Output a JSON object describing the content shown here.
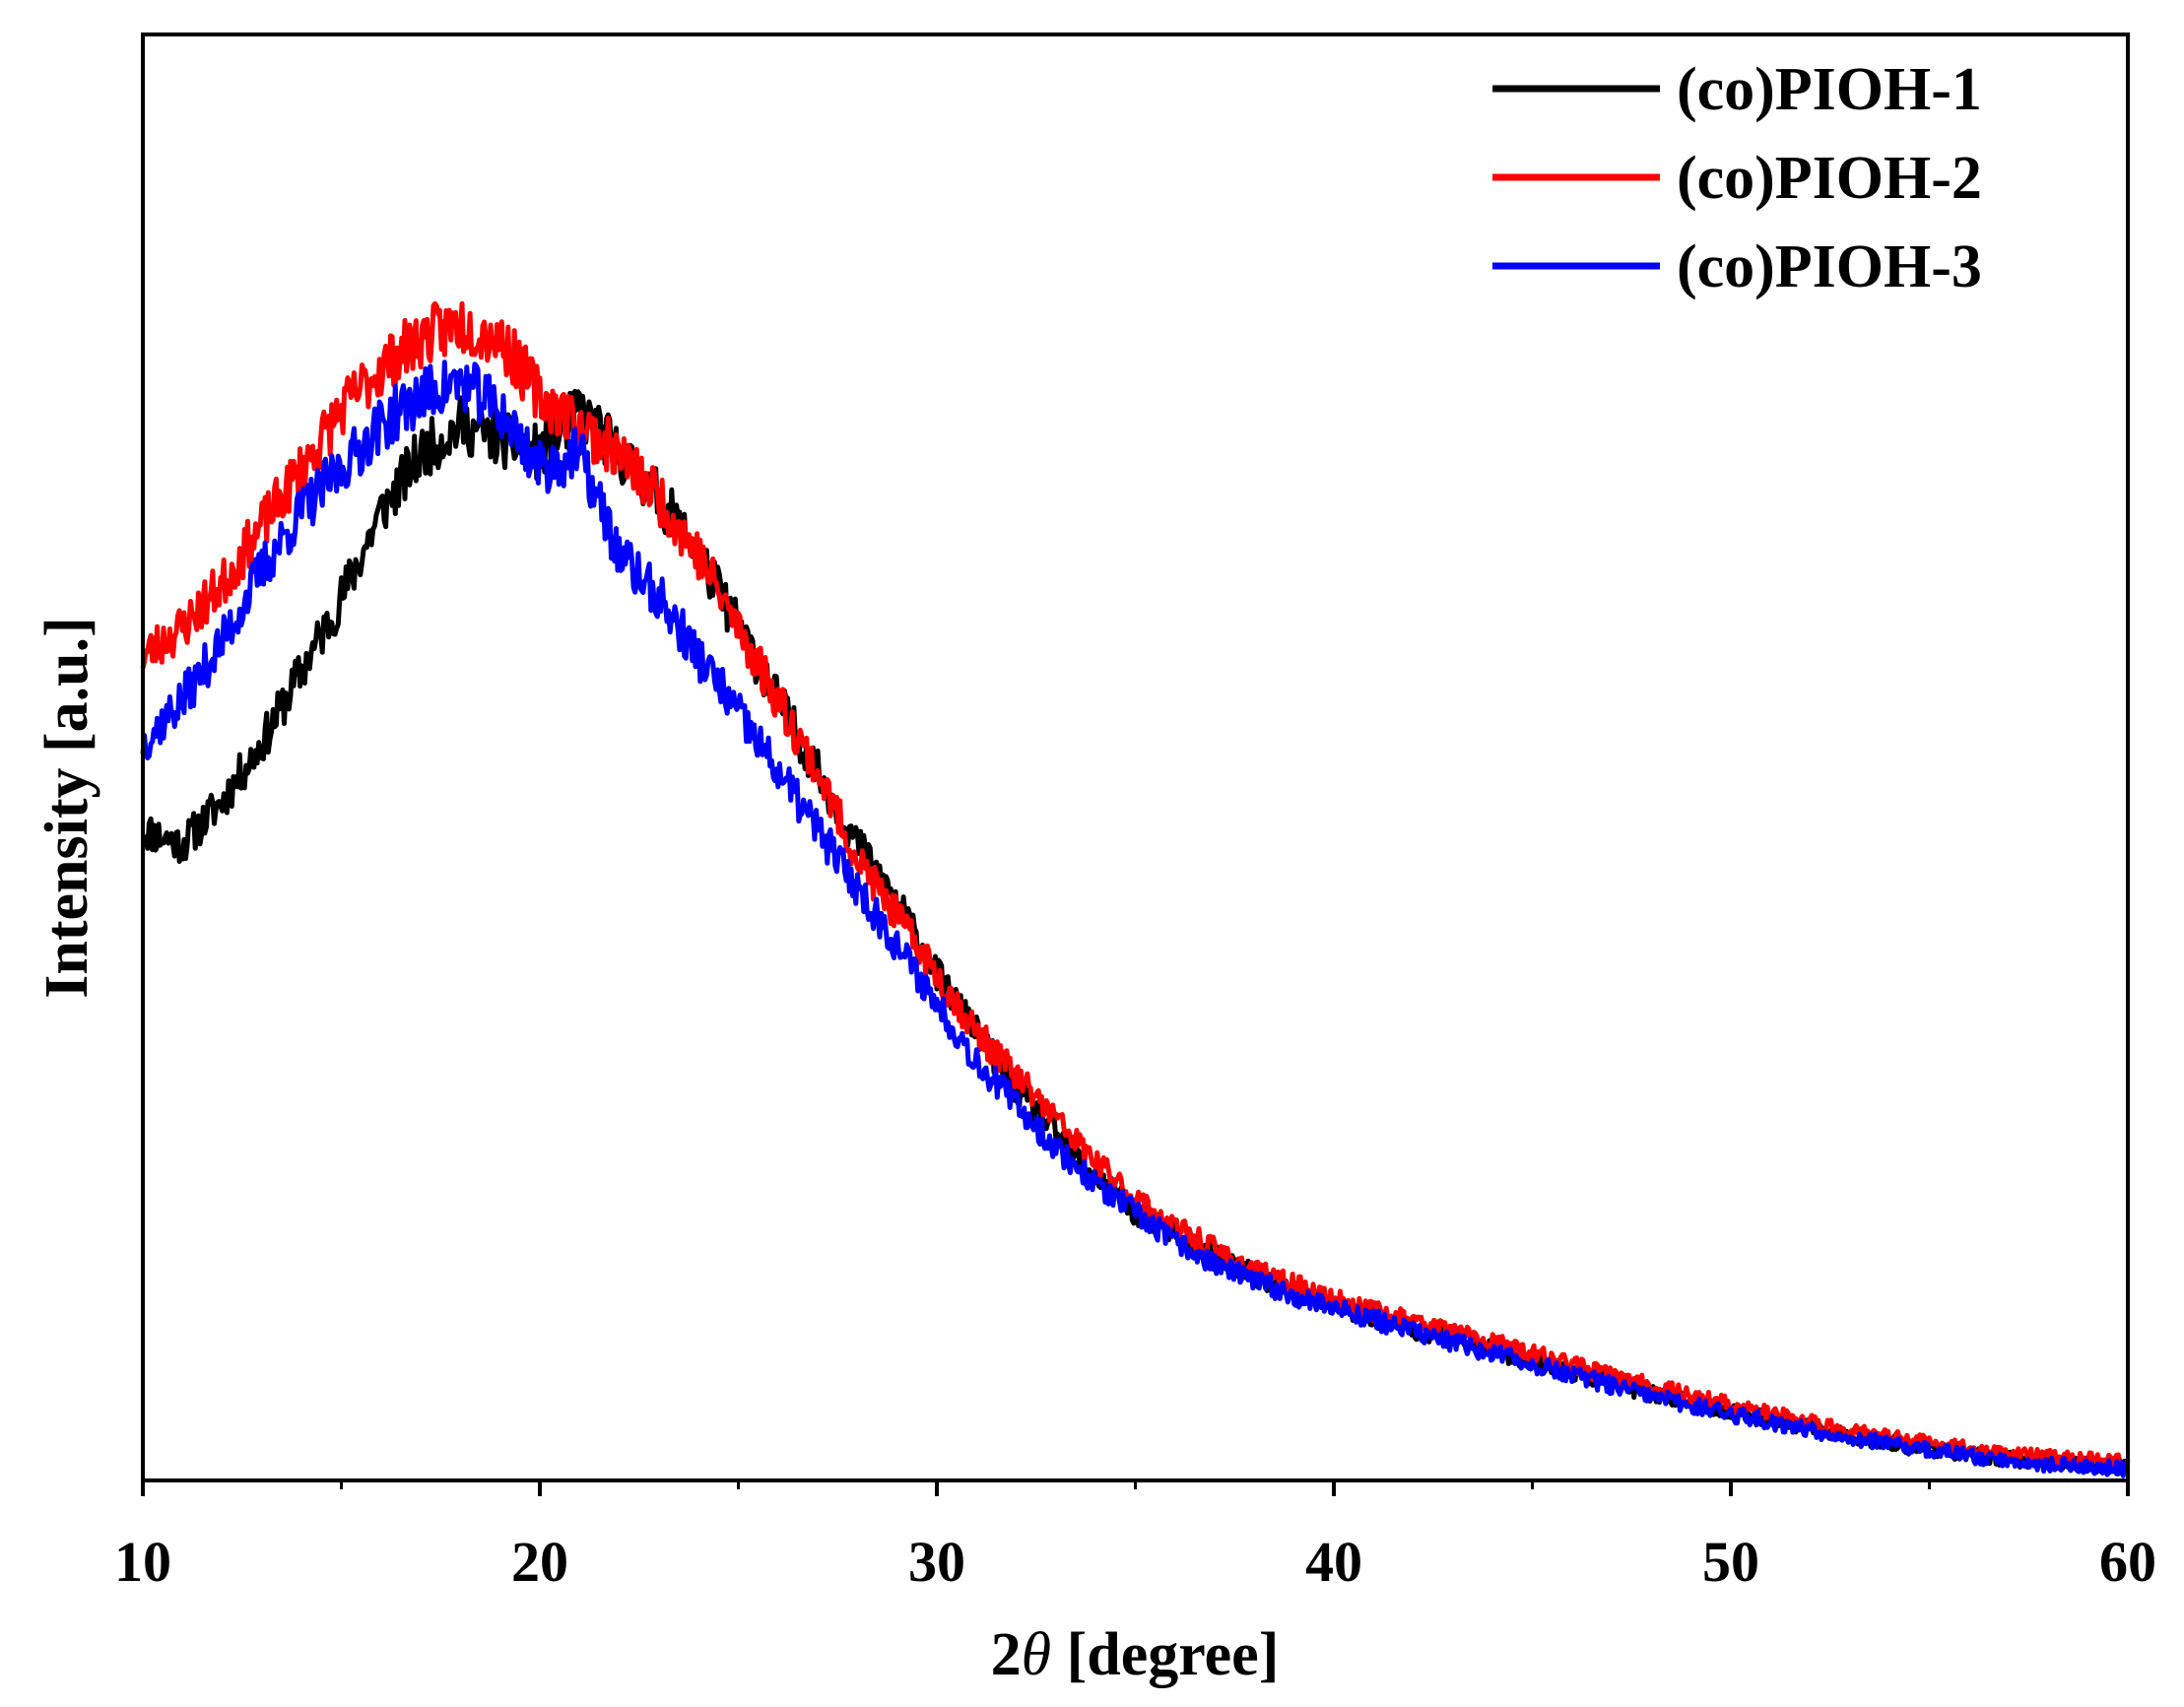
{
  "chart_data": {
    "type": "line",
    "title": "",
    "xlabel": "2θ [degree]",
    "xlabel_prefix": "2",
    "xlabel_symbol": "θ",
    "xlabel_suffix": " [degree]",
    "ylabel": "Intensity [a.u.]",
    "xlim": [
      10,
      60
    ],
    "ylim": [
      0,
      100
    ],
    "xticks": [
      10,
      20,
      30,
      40,
      50,
      60
    ],
    "xtick_labels": [
      "10",
      "20",
      "30",
      "40",
      "50",
      "60"
    ],
    "minor_xticks": [
      15,
      25,
      35,
      45,
      55
    ],
    "y_ticks_shown": false,
    "grid": false,
    "legend_position": "top-right",
    "series": [
      {
        "name": "(co)PIOH-1",
        "color": "#000000",
        "noise": 1.2,
        "seed": 11,
        "x": [
          10,
          11,
          12,
          13,
          14,
          15,
          16,
          17,
          18,
          19,
          20,
          21,
          22,
          23,
          24,
          25,
          26,
          27,
          28,
          29,
          30,
          31,
          32,
          33,
          34,
          35,
          36,
          37,
          38,
          39,
          40,
          42,
          44,
          46,
          48,
          50,
          52,
          54,
          56,
          58,
          60
        ],
        "y": [
          45,
          44,
          47,
          51,
          56,
          61,
          67,
          71,
          73,
          72,
          71,
          74,
          71,
          68,
          64,
          59,
          54,
          49,
          44,
          40,
          35,
          31,
          27,
          24,
          21,
          18.5,
          17,
          15.5,
          14.2,
          13,
          12,
          10.5,
          9,
          7.5,
          6,
          4.8,
          3.6,
          2.6,
          1.8,
          1.2,
          0.9
        ]
      },
      {
        "name": "(co)PIOH-2",
        "color": "#ff0000",
        "noise": 1.2,
        "seed": 23,
        "x": [
          10,
          11,
          12,
          13,
          14,
          15,
          16,
          17,
          18,
          19,
          20,
          21,
          22,
          23,
          24,
          25,
          26,
          27,
          28,
          29,
          30,
          31,
          32,
          33,
          34,
          35,
          36,
          37,
          38,
          39,
          40,
          42,
          44,
          46,
          48,
          50,
          52,
          54,
          56,
          58,
          60
        ],
        "y": [
          57,
          59,
          62,
          66,
          70,
          74,
          77,
          79,
          80,
          79,
          75,
          73,
          71,
          68,
          64,
          59,
          54,
          49,
          43,
          39,
          35,
          31,
          28,
          25,
          22,
          19.5,
          17.5,
          16,
          14.5,
          13.5,
          12.5,
          11,
          9.5,
          8,
          6.5,
          5.2,
          4,
          3,
          2.2,
          1.6,
          1.3
        ]
      },
      {
        "name": "(co)PIOH-3",
        "color": "#0000ff",
        "noise": 1.2,
        "seed": 37,
        "x": [
          10,
          11,
          12,
          13,
          14,
          15,
          16,
          17,
          18,
          19,
          20,
          21,
          22,
          23,
          24,
          25,
          26,
          27,
          28,
          29,
          30,
          31,
          32,
          33,
          34,
          35,
          36,
          37,
          38,
          39,
          40,
          42,
          44,
          46,
          48,
          50,
          52,
          54,
          56,
          58,
          60
        ],
        "y": [
          51,
          54,
          58,
          63,
          67,
          70,
          73,
          75,
          76,
          74,
          70,
          71,
          64,
          61,
          57,
          53,
          49,
          45,
          41,
          37,
          33,
          29,
          26,
          23,
          20.5,
          18.5,
          16.5,
          15,
          13.8,
          12.8,
          12,
          10.3,
          8.8,
          7.3,
          5.8,
          4.6,
          3.5,
          2.5,
          1.7,
          1.1,
          0.8
        ]
      }
    ]
  }
}
